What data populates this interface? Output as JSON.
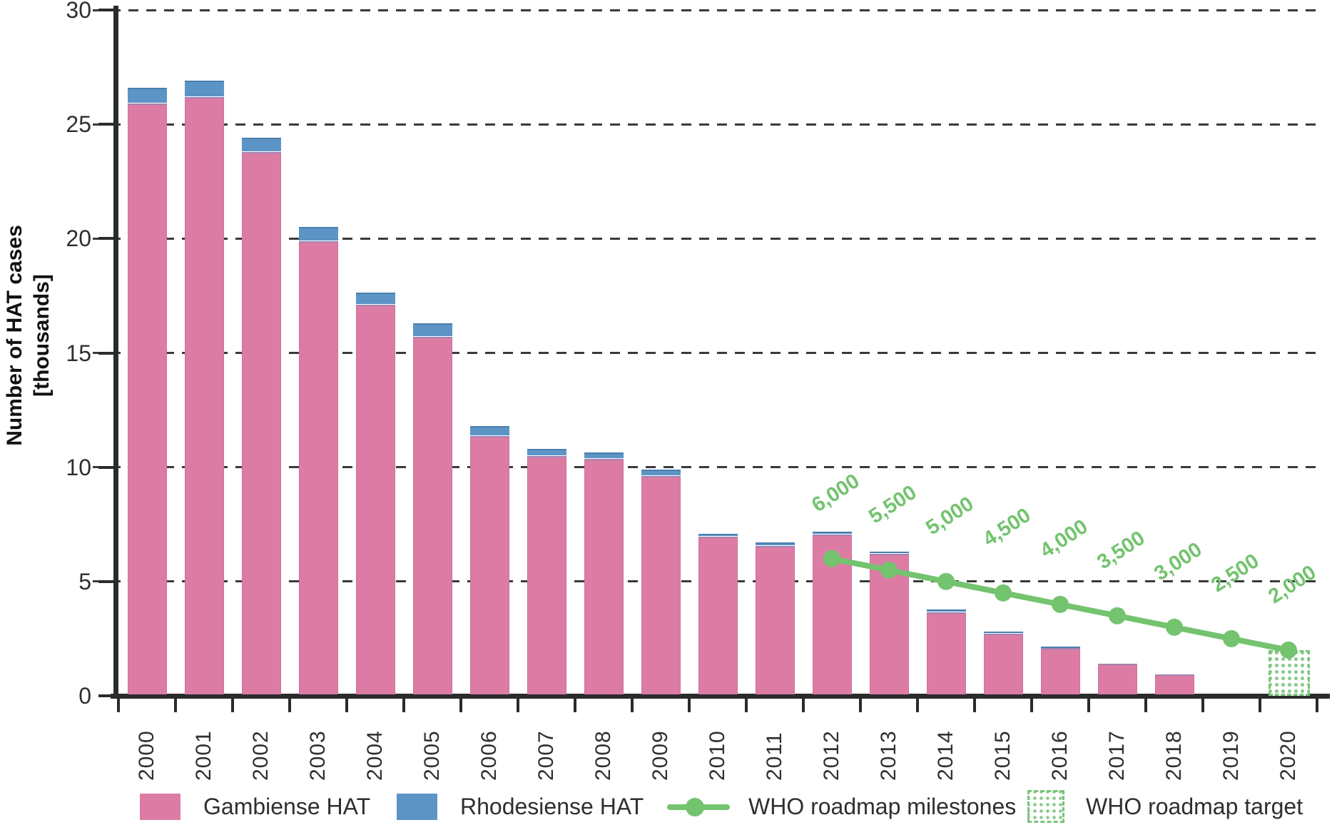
{
  "colors": {
    "gambiense": "#DC7CA5",
    "rhodesiense": "#5C95C5",
    "milestone_green": "#74C36F",
    "grid": "#3A3A3A",
    "axis": "#2B2B2B"
  },
  "y_axis": {
    "label_line1": "Number of HAT cases",
    "label_line2": "[thousands]",
    "tick_values": [
      0,
      5,
      10,
      15,
      20,
      25,
      30
    ]
  },
  "chart_data": {
    "type": "bar",
    "subtype": "stacked bars with milestone line and hatched target bar",
    "title": "",
    "xlabel": "",
    "ylabel": "Number of HAT cases [thousands]",
    "ylim": [
      0,
      30
    ],
    "yticks": [
      0,
      5,
      10,
      15,
      20,
      25,
      30
    ],
    "grid": "horizontal dashed",
    "legend_position": "bottom",
    "categories": [
      "2000",
      "2001",
      "2002",
      "2003",
      "2004",
      "2005",
      "2006",
      "2007",
      "2008",
      "2009",
      "2010",
      "2011",
      "2012",
      "2013",
      "2014",
      "2015",
      "2016",
      "2017",
      "2018",
      "2019",
      "2020"
    ],
    "series": [
      {
        "name": "Gambiense HAT",
        "color": "#DC7CA5",
        "values": [
          25.9,
          26.2,
          23.8,
          19.9,
          17.1,
          15.7,
          11.35,
          10.5,
          10.35,
          9.6,
          6.95,
          6.55,
          7.05,
          6.2,
          3.65,
          2.72,
          2.1,
          1.42,
          0.95,
          0,
          0
        ]
      },
      {
        "name": "Rhodesiense HAT",
        "color": "#5C95C5",
        "values": [
          0.7,
          0.7,
          0.6,
          0.6,
          0.55,
          0.6,
          0.45,
          0.3,
          0.3,
          0.3,
          0.15,
          0.15,
          0.12,
          0.1,
          0.13,
          0.08,
          0.05,
          0,
          0,
          0,
          0
        ]
      }
    ],
    "milestone_line": {
      "name": "WHO roadmap milestones",
      "color": "#74C36F",
      "years": [
        "2012",
        "2013",
        "2014",
        "2015",
        "2016",
        "2017",
        "2018",
        "2019",
        "2020"
      ],
      "values_thousands": [
        6.0,
        5.5,
        5.0,
        4.5,
        4.0,
        3.5,
        3.0,
        2.5,
        2.0
      ],
      "labels": [
        "6,000",
        "5,500",
        "5,000",
        "4,500",
        "4,000",
        "3,500",
        "3,000",
        "2,500",
        "2,000"
      ]
    },
    "target_bar": {
      "name": "WHO roadmap target",
      "year": "2020",
      "value_thousands": 2.0
    }
  },
  "legend": {
    "gambiense_label": "Gambiense HAT",
    "rhodesiense_label": "Rhodesiense HAT",
    "milestones_label": "WHO roadmap milestones",
    "target_label": "WHO roadmap target"
  }
}
